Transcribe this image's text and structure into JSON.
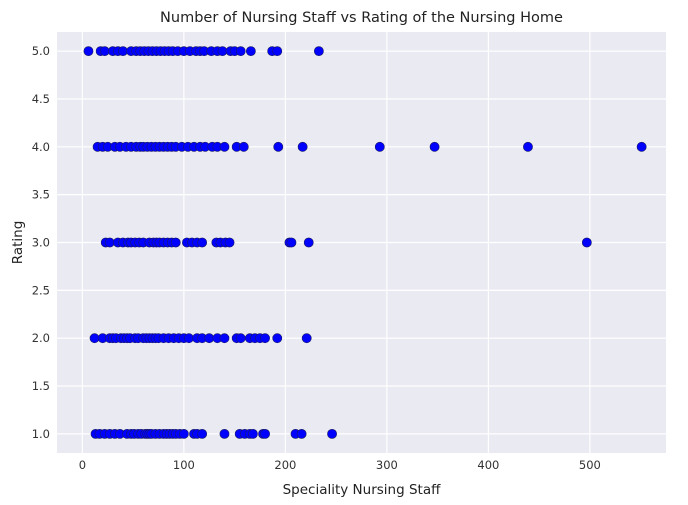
{
  "chart_data": {
    "type": "scatter",
    "title": "Number of Nursing Staff vs Rating of the Nursing Home",
    "xlabel": "Speciality Nursing Staff",
    "ylabel": "Rating",
    "xlim": [
      -25,
      575
    ],
    "ylim": [
      0.8,
      5.2
    ],
    "xticks": [
      0,
      100,
      200,
      300,
      400,
      500
    ],
    "yticks": [
      1.0,
      1.5,
      2.0,
      2.5,
      3.0,
      3.5,
      4.0,
      4.5,
      5.0
    ],
    "grid": true,
    "colors": {
      "background": "#EAEAF2",
      "grid": "#FFFFFF",
      "marker_fill": "#0000FF",
      "marker_edge": "#1A1A66"
    },
    "series": [
      {
        "points": [
          [
            13,
            1.0
          ],
          [
            17,
            1.0
          ],
          [
            22,
            1.0
          ],
          [
            27,
            1.0
          ],
          [
            32,
            1.0
          ],
          [
            37,
            1.0
          ],
          [
            44,
            1.0
          ],
          [
            48,
            1.0
          ],
          [
            51,
            1.0
          ],
          [
            55,
            1.0
          ],
          [
            58,
            1.0
          ],
          [
            62,
            1.0
          ],
          [
            64,
            1.0
          ],
          [
            66,
            1.0
          ],
          [
            68,
            1.0
          ],
          [
            72,
            1.0
          ],
          [
            76,
            1.0
          ],
          [
            80,
            1.0
          ],
          [
            83,
            1.0
          ],
          [
            86,
            1.0
          ],
          [
            89,
            1.0
          ],
          [
            92,
            1.0
          ],
          [
            96,
            1.0
          ],
          [
            100,
            1.0
          ],
          [
            110,
            1.0
          ],
          [
            113,
            1.0
          ],
          [
            118,
            1.0
          ],
          [
            140,
            1.0
          ],
          [
            155,
            1.0
          ],
          [
            160,
            1.0
          ],
          [
            165,
            1.0
          ],
          [
            168,
            1.0
          ],
          [
            178,
            1.0
          ],
          [
            180,
            1.0
          ],
          [
            210,
            1.0
          ],
          [
            216,
            1.0
          ],
          [
            246,
            1.0
          ],
          [
            12,
            2.0
          ],
          [
            20,
            2.0
          ],
          [
            27,
            2.0
          ],
          [
            30,
            2.0
          ],
          [
            33,
            2.0
          ],
          [
            38,
            2.0
          ],
          [
            41,
            2.0
          ],
          [
            44,
            2.0
          ],
          [
            47,
            2.0
          ],
          [
            52,
            2.0
          ],
          [
            55,
            2.0
          ],
          [
            60,
            2.0
          ],
          [
            63,
            2.0
          ],
          [
            66,
            2.0
          ],
          [
            69,
            2.0
          ],
          [
            72,
            2.0
          ],
          [
            75,
            2.0
          ],
          [
            80,
            2.0
          ],
          [
            85,
            2.0
          ],
          [
            90,
            2.0
          ],
          [
            95,
            2.0
          ],
          [
            100,
            2.0
          ],
          [
            105,
            2.0
          ],
          [
            113,
            2.0
          ],
          [
            118,
            2.0
          ],
          [
            125,
            2.0
          ],
          [
            133,
            2.0
          ],
          [
            140,
            2.0
          ],
          [
            152,
            2.0
          ],
          [
            156,
            2.0
          ],
          [
            165,
            2.0
          ],
          [
            170,
            2.0
          ],
          [
            175,
            2.0
          ],
          [
            180,
            2.0
          ],
          [
            192,
            2.0
          ],
          [
            221,
            2.0
          ],
          [
            23,
            3.0
          ],
          [
            27,
            3.0
          ],
          [
            35,
            3.0
          ],
          [
            40,
            3.0
          ],
          [
            45,
            3.0
          ],
          [
            48,
            3.0
          ],
          [
            52,
            3.0
          ],
          [
            56,
            3.0
          ],
          [
            60,
            3.0
          ],
          [
            66,
            3.0
          ],
          [
            70,
            3.0
          ],
          [
            73,
            3.0
          ],
          [
            76,
            3.0
          ],
          [
            80,
            3.0
          ],
          [
            84,
            3.0
          ],
          [
            88,
            3.0
          ],
          [
            92,
            3.0
          ],
          [
            103,
            3.0
          ],
          [
            108,
            3.0
          ],
          [
            113,
            3.0
          ],
          [
            118,
            3.0
          ],
          [
            132,
            3.0
          ],
          [
            136,
            3.0
          ],
          [
            141,
            3.0
          ],
          [
            145,
            3.0
          ],
          [
            204,
            3.0
          ],
          [
            206,
            3.0
          ],
          [
            223,
            3.0
          ],
          [
            497,
            3.0
          ],
          [
            15,
            4.0
          ],
          [
            20,
            4.0
          ],
          [
            25,
            4.0
          ],
          [
            32,
            4.0
          ],
          [
            37,
            4.0
          ],
          [
            43,
            4.0
          ],
          [
            48,
            4.0
          ],
          [
            53,
            4.0
          ],
          [
            57,
            4.0
          ],
          [
            60,
            4.0
          ],
          [
            64,
            4.0
          ],
          [
            68,
            4.0
          ],
          [
            72,
            4.0
          ],
          [
            76,
            4.0
          ],
          [
            80,
            4.0
          ],
          [
            84,
            4.0
          ],
          [
            88,
            4.0
          ],
          [
            92,
            4.0
          ],
          [
            98,
            4.0
          ],
          [
            104,
            4.0
          ],
          [
            110,
            4.0
          ],
          [
            116,
            4.0
          ],
          [
            121,
            4.0
          ],
          [
            128,
            4.0
          ],
          [
            133,
            4.0
          ],
          [
            140,
            4.0
          ],
          [
            152,
            4.0
          ],
          [
            159,
            4.0
          ],
          [
            193,
            4.0
          ],
          [
            217,
            4.0
          ],
          [
            293,
            4.0
          ],
          [
            347,
            4.0
          ],
          [
            439,
            4.0
          ],
          [
            551,
            4.0
          ],
          [
            6,
            5.0
          ],
          [
            18,
            5.0
          ],
          [
            22,
            5.0
          ],
          [
            30,
            5.0
          ],
          [
            35,
            5.0
          ],
          [
            40,
            5.0
          ],
          [
            48,
            5.0
          ],
          [
            53,
            5.0
          ],
          [
            57,
            5.0
          ],
          [
            61,
            5.0
          ],
          [
            65,
            5.0
          ],
          [
            69,
            5.0
          ],
          [
            73,
            5.0
          ],
          [
            77,
            5.0
          ],
          [
            81,
            5.0
          ],
          [
            85,
            5.0
          ],
          [
            89,
            5.0
          ],
          [
            94,
            5.0
          ],
          [
            100,
            5.0
          ],
          [
            106,
            5.0
          ],
          [
            112,
            5.0
          ],
          [
            116,
            5.0
          ],
          [
            120,
            5.0
          ],
          [
            127,
            5.0
          ],
          [
            133,
            5.0
          ],
          [
            138,
            5.0
          ],
          [
            146,
            5.0
          ],
          [
            150,
            5.0
          ],
          [
            156,
            5.0
          ],
          [
            166,
            5.0
          ],
          [
            187,
            5.0
          ],
          [
            192,
            5.0
          ],
          [
            233,
            5.0
          ]
        ]
      }
    ]
  }
}
